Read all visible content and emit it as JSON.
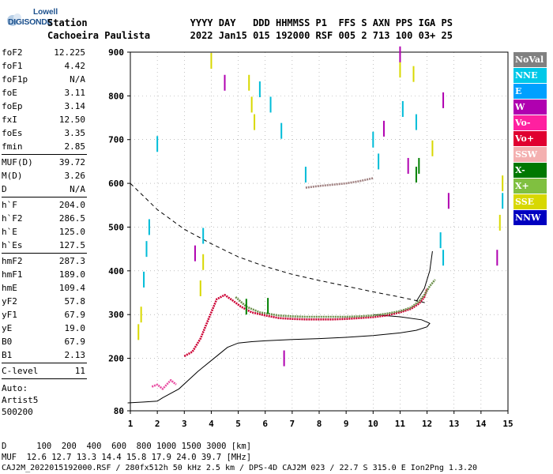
{
  "header": {
    "logo_top": "Lowell",
    "logo_bottom": "DIGISONDE",
    "labels_line": "Station                  YYYY DAY   DDD HHMMSS P1  FFS S AXN PPS IGA PS",
    "values_line": "Cachoeira Paulista       2022 Jan15 015 192000 RSF 005 2 713 100 03+ 25"
  },
  "params_group1": [
    {
      "name": "foF2",
      "value": "12.225"
    },
    {
      "name": "foF1",
      "value": "4.42"
    },
    {
      "name": "foF1p",
      "value": "N/A"
    },
    {
      "name": "foE",
      "value": "3.11"
    },
    {
      "name": "foEp",
      "value": "3.14"
    },
    {
      "name": "fxI",
      "value": "12.50"
    },
    {
      "name": "foEs",
      "value": "3.35"
    },
    {
      "name": "fmin",
      "value": "2.85"
    }
  ],
  "params_group2": [
    {
      "name": "MUF(D)",
      "value": "39.72"
    },
    {
      "name": "M(D)",
      "value": "3.26"
    },
    {
      "name": "D",
      "value": "N/A"
    }
  ],
  "params_group3": [
    {
      "name": "h`F",
      "value": "204.0"
    },
    {
      "name": "h`F2",
      "value": "286.5"
    },
    {
      "name": "h`E",
      "value": "125.0"
    },
    {
      "name": "h`Es",
      "value": "127.5"
    }
  ],
  "params_group4": [
    {
      "name": "hmF2",
      "value": "287.3"
    },
    {
      "name": "hmF1",
      "value": "189.0"
    },
    {
      "name": "hmE",
      "value": "109.4"
    },
    {
      "name": "yF2",
      "value": "57.8"
    },
    {
      "name": "yF1",
      "value": "67.9"
    },
    {
      "name": "yE",
      "value": "19.0"
    },
    {
      "name": "B0",
      "value": "67.9"
    },
    {
      "name": "B1",
      "value": "2.13"
    }
  ],
  "params_group5": [
    {
      "name": "C-level",
      "value": "11"
    }
  ],
  "autoscaling": {
    "line1": "Auto:",
    "line2": "Artist5",
    "line3": "500200"
  },
  "legend": [
    {
      "label": "NoVal",
      "bg": "#808080",
      "fg": "#ffffff"
    },
    {
      "label": "NNE",
      "bg": "#00c8e8",
      "fg": "#ffffff"
    },
    {
      "label": "E",
      "bg": "#00a0ff",
      "fg": "#ffffff"
    },
    {
      "label": "W",
      "bg": "#b000b0",
      "fg": "#ffffff"
    },
    {
      "label": "Vo-",
      "bg": "#ff20a0",
      "fg": "#ffffff"
    },
    {
      "label": "Vo+",
      "bg": "#e00030",
      "fg": "#ffffff"
    },
    {
      "label": "SSW",
      "bg": "#f4b0b0",
      "fg": "#ffffff"
    },
    {
      "label": "X-",
      "bg": "#007800",
      "fg": "#ffffff"
    },
    {
      "label": "X+",
      "bg": "#80c040",
      "fg": "#ffffff"
    },
    {
      "label": "SSE",
      "bg": "#d8d800",
      "fg": "#ffffff"
    },
    {
      "label": "NNW",
      "bg": "#0000c0",
      "fg": "#ffffff"
    }
  ],
  "footer": {
    "d_line": "D      100  200  400  600  800 1000 1500 3000 [km]",
    "muf_line": "MUF  12.6 12.7 13.3 14.4 15.8 17.9 24.0 39.7 [MHz]",
    "file_line": "CAJ2M_2022015192000.RSF / 280fx512h 50 kHz 2.5 km / DPS-4D CAJ2M 023 / 22.7 S 315.0 E Ion2Png 1.3.20"
  },
  "chart_data": {
    "type": "scatter",
    "title": "",
    "xlabel": "",
    "ylabel": "",
    "xlim": [
      1,
      15
    ],
    "ylim": [
      80,
      900
    ],
    "x_ticks": [
      1,
      2,
      3,
      4,
      5,
      6,
      7,
      8,
      9,
      10,
      11,
      12,
      13,
      14,
      15
    ],
    "y_ticks": [
      80,
      200,
      300,
      400,
      500,
      600,
      700,
      800,
      900
    ],
    "grid": "dotted",
    "series": [
      {
        "type": "trace",
        "color": "#cc0033",
        "points": [
          [
            3.0,
            205
          ],
          [
            3.3,
            215
          ],
          [
            3.6,
            245
          ],
          [
            3.9,
            290
          ],
          [
            4.2,
            335
          ],
          [
            4.5,
            345
          ],
          [
            4.8,
            332
          ],
          [
            5.1,
            318
          ],
          [
            5.5,
            305
          ],
          [
            6.0,
            298
          ],
          [
            6.5,
            292
          ],
          [
            7.0,
            290
          ],
          [
            7.5,
            289
          ],
          [
            8.0,
            289
          ],
          [
            8.5,
            289
          ],
          [
            9.0,
            290
          ],
          [
            9.5,
            292
          ],
          [
            10.0,
            294
          ],
          [
            10.5,
            298
          ],
          [
            11.0,
            305
          ],
          [
            11.4,
            313
          ],
          [
            11.7,
            325
          ],
          [
            11.9,
            340
          ],
          [
            12.0,
            360
          ]
        ]
      },
      {
        "type": "trace",
        "color": "#6b8f4a",
        "points": [
          [
            4.9,
            340
          ],
          [
            5.3,
            318
          ],
          [
            5.8,
            305
          ],
          [
            6.5,
            298
          ],
          [
            7.0,
            296
          ],
          [
            7.5,
            295
          ],
          [
            8.0,
            295
          ],
          [
            8.5,
            295
          ],
          [
            9.0,
            295
          ],
          [
            9.5,
            296
          ],
          [
            10.0,
            298
          ],
          [
            10.5,
            302
          ],
          [
            11.0,
            308
          ],
          [
            11.4,
            316
          ],
          [
            11.7,
            330
          ],
          [
            11.9,
            345
          ],
          [
            12.1,
            365
          ],
          [
            12.3,
            380
          ]
        ]
      },
      {
        "type": "trace",
        "color": "#e84aa0",
        "points": [
          [
            1.8,
            135
          ],
          [
            2.0,
            140
          ],
          [
            2.2,
            130
          ],
          [
            2.5,
            150
          ],
          [
            2.7,
            140
          ]
        ]
      },
      {
        "type": "trace",
        "color": "#a08080",
        "points": [
          [
            7.5,
            590
          ],
          [
            8.0,
            594
          ],
          [
            8.5,
            597
          ],
          [
            9.0,
            600
          ],
          [
            9.5,
            605
          ],
          [
            10.0,
            612
          ]
        ]
      },
      {
        "type": "scatter",
        "color": "#00bcd8",
        "points": [
          [
            1.5,
            380
          ],
          [
            1.6,
            450
          ],
          [
            1.7,
            500
          ],
          [
            2.0,
            690
          ],
          [
            3.7,
            480
          ],
          [
            5.8,
            815
          ],
          [
            6.2,
            780
          ],
          [
            6.6,
            720
          ],
          [
            7.5,
            620
          ],
          [
            10.0,
            700
          ],
          [
            10.2,
            650
          ],
          [
            11.1,
            770
          ],
          [
            11.6,
            740
          ],
          [
            12.5,
            470
          ],
          [
            12.6,
            430
          ],
          [
            14.8,
            560
          ]
        ]
      },
      {
        "type": "scatter",
        "color": "#d8d800",
        "points": [
          [
            1.3,
            260
          ],
          [
            1.4,
            300
          ],
          [
            3.6,
            360
          ],
          [
            3.7,
            420
          ],
          [
            4.0,
            880
          ],
          [
            5.4,
            830
          ],
          [
            5.5,
            780
          ],
          [
            5.6,
            740
          ],
          [
            11.0,
            860
          ],
          [
            11.5,
            850
          ],
          [
            12.2,
            680
          ],
          [
            14.7,
            510
          ],
          [
            14.8,
            600
          ]
        ]
      },
      {
        "type": "scatter",
        "color": "#b000b0",
        "points": [
          [
            3.4,
            440
          ],
          [
            4.5,
            830
          ],
          [
            6.7,
            200
          ],
          [
            10.4,
            725
          ],
          [
            11.0,
            895
          ],
          [
            11.3,
            640
          ],
          [
            12.6,
            790
          ],
          [
            12.8,
            560
          ],
          [
            14.6,
            430
          ]
        ]
      },
      {
        "type": "scatter",
        "color": "#008000",
        "points": [
          [
            5.3,
            318
          ],
          [
            6.1,
            320
          ],
          [
            11.6,
            620
          ],
          [
            11.7,
            640
          ]
        ]
      }
    ],
    "model_curves": [
      {
        "name": "",
        "style": "solid",
        "points": [
          [
            0.9,
            98
          ],
          [
            1.5,
            100
          ],
          [
            2.0,
            102
          ],
          [
            2.2,
            110
          ],
          [
            2.8,
            130
          ],
          [
            3.5,
            170
          ],
          [
            4.2,
            205
          ],
          [
            4.6,
            225
          ],
          [
            5.0,
            235
          ],
          [
            5.5,
            238
          ],
          [
            6.0,
            240
          ],
          [
            7.0,
            243
          ],
          [
            8.0,
            245
          ],
          [
            9.0,
            248
          ],
          [
            10.0,
            252
          ],
          [
            11.0,
            258
          ],
          [
            11.6,
            264
          ],
          [
            12.0,
            272
          ],
          [
            12.1,
            280
          ],
          [
            11.8,
            288
          ],
          [
            11.0,
            295
          ],
          [
            10.0,
            300
          ]
        ]
      },
      {
        "name": "",
        "style": "dashed",
        "points": [
          [
            1.0,
            600
          ],
          [
            1.5,
            570
          ],
          [
            2.0,
            540
          ],
          [
            3.0,
            495
          ],
          [
            4.0,
            462
          ],
          [
            5.0,
            432
          ],
          [
            6.0,
            410
          ],
          [
            7.0,
            392
          ],
          [
            8.0,
            378
          ],
          [
            9.0,
            365
          ],
          [
            10.0,
            352
          ],
          [
            11.0,
            340
          ],
          [
            11.6,
            332
          ],
          [
            12.0,
            326
          ]
        ]
      },
      {
        "name": "",
        "style": "solid",
        "points": [
          [
            11.6,
            330
          ],
          [
            11.9,
            360
          ],
          [
            12.1,
            400
          ],
          [
            12.2,
            445
          ]
        ]
      }
    ]
  }
}
